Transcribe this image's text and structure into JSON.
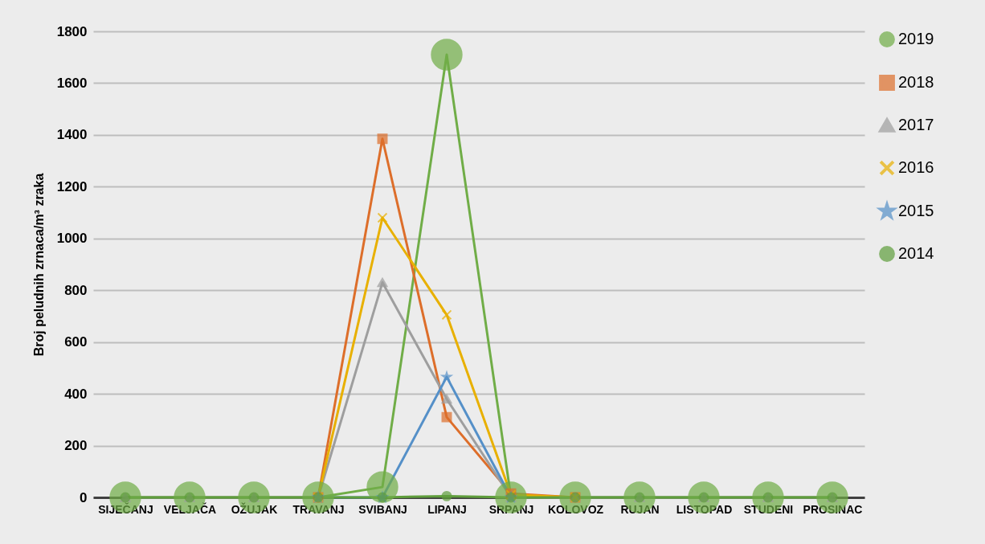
{
  "chart_data": {
    "type": "line",
    "ylabel": "Broj peludnih zrnaca/m³ zraka",
    "categories": [
      "SIJEČANJ",
      "VELJAČA",
      "OŽUJAK",
      "TRAVANJ",
      "SVIBANJ",
      "LIPANJ",
      "SRPANJ",
      "KOLOVOZ",
      "RUJAN",
      "LISTOPAD",
      "STUDENI",
      "PROSINAC"
    ],
    "series": [
      {
        "name": "2019",
        "color": "#70ad47",
        "marker": "circle",
        "values": [
          0,
          0,
          0,
          0,
          40,
          1710,
          0,
          0,
          0,
          0,
          0,
          0
        ]
      },
      {
        "name": "2018",
        "color": "#dd6e2a",
        "marker": "square",
        "values": [
          null,
          null,
          null,
          0,
          1385,
          310,
          15,
          0,
          null,
          null,
          null,
          null
        ]
      },
      {
        "name": "2017",
        "color": "#9e9e9e",
        "marker": "triangle",
        "values": [
          0,
          0,
          0,
          0,
          830,
          380,
          0,
          0,
          0,
          0,
          0,
          0
        ]
      },
      {
        "name": "2016",
        "color": "#e8b000",
        "marker": "cross",
        "values": [
          null,
          null,
          null,
          0,
          1080,
          705,
          10,
          0,
          null,
          null,
          null,
          null
        ]
      },
      {
        "name": "2015",
        "color": "#5590c8",
        "marker": "star",
        "values": [
          null,
          null,
          null,
          0,
          0,
          465,
          0,
          null,
          null,
          null,
          null,
          null
        ]
      },
      {
        "name": "2014",
        "color": "#5f9e3c",
        "marker": "circle",
        "values": [
          0,
          0,
          0,
          0,
          0,
          5,
          0,
          0,
          0,
          0,
          0,
          0
        ]
      }
    ],
    "ylim": [
      0,
      1800
    ],
    "yticks": [
      0,
      200,
      400,
      600,
      800,
      1000,
      1200,
      1400,
      1600,
      1800
    ],
    "grid": "y",
    "legend": "right",
    "line_style": "solid"
  }
}
